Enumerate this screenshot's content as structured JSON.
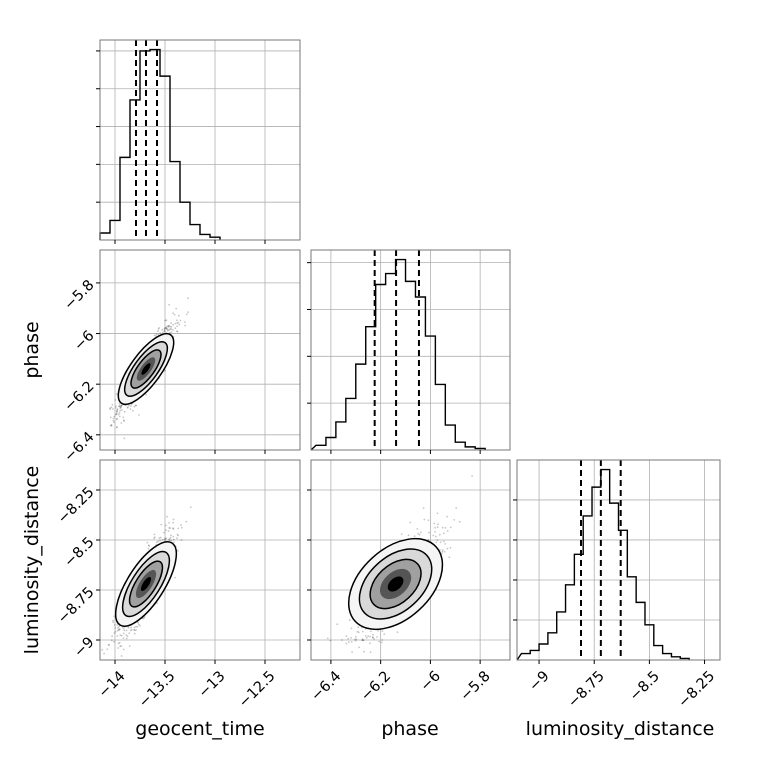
{
  "figure": {
    "background": "#ffffff",
    "grid": true,
    "grid_color": "#b0b0b0"
  },
  "chart_data": [
    {
      "type": "histogram",
      "panel": "geocent_time",
      "xlim": [
        -14.15,
        -12.15
      ],
      "bins": [
        -14.15,
        -14.05,
        -13.95,
        -13.85,
        -13.75,
        -13.65,
        -13.55,
        -13.45,
        -13.35,
        -13.25,
        -13.15,
        -13.05,
        -12.95
      ],
      "counts": [
        0.05,
        0.14,
        0.59,
        1.0,
        1.35,
        1.36,
        1.17,
        0.56,
        0.27,
        0.11,
        0.04,
        0.02,
        0.0
      ],
      "quantiles": [
        -13.79,
        -13.69,
        -13.58
      ],
      "xticks": [
        -14.0,
        -13.5,
        -13.0,
        -12.5
      ]
    },
    {
      "type": "histogram",
      "panel": "phase",
      "xlim": [
        -6.48,
        -5.68
      ],
      "bins": [
        -6.46,
        -6.42,
        -6.38,
        -6.34,
        -6.3,
        -6.26,
        -6.22,
        -6.18,
        -6.14,
        -6.1,
        -6.06,
        -6.02,
        -5.98,
        -5.94,
        -5.9,
        -5.86,
        -5.82,
        -5.78
      ],
      "counts": [
        0.03,
        0.08,
        0.18,
        0.33,
        0.55,
        0.79,
        1.06,
        1.13,
        1.22,
        1.08,
        0.98,
        0.73,
        0.42,
        0.16,
        0.05,
        0.02,
        0.01
      ],
      "quantiles": [
        -6.224,
        -6.138,
        -6.046
      ],
      "xticks": [
        -6.4,
        -6.2,
        -6.0,
        -5.8
      ]
    },
    {
      "type": "histogram",
      "panel": "luminosity_distance",
      "xlim": [
        -9.1,
        -8.18
      ],
      "bins": [
        -9.08,
        -9.04,
        -9.0,
        -8.96,
        -8.92,
        -8.88,
        -8.84,
        -8.8,
        -8.76,
        -8.72,
        -8.68,
        -8.64,
        -8.6,
        -8.56,
        -8.52,
        -8.48,
        -8.44,
        -8.4,
        -8.36,
        -8.32
      ],
      "counts": [
        0.04,
        0.06,
        0.1,
        0.17,
        0.3,
        0.47,
        0.66,
        0.9,
        1.08,
        1.19,
        0.98,
        0.81,
        0.52,
        0.36,
        0.22,
        0.09,
        0.04,
        0.02,
        0.01
      ],
      "quantiles": [
        -8.81,
        -8.72,
        -8.63
      ],
      "xticks": [
        -9.0,
        -8.75,
        -8.5,
        -8.25
      ]
    },
    {
      "type": "scatter-density",
      "panel": "phase vs geocent_time",
      "x_param": "geocent_time",
      "y_param": "phase",
      "xlim": [
        -14.15,
        -12.15
      ],
      "ylim": [
        -6.46,
        -5.67
      ],
      "center": [
        -13.69,
        -6.14
      ],
      "sd": [
        0.14,
        0.085
      ],
      "correlation": 0.9,
      "yticks": [
        -5.8,
        -6.0,
        -6.2,
        -6.4
      ]
    },
    {
      "type": "scatter-density",
      "panel": "luminosity_distance vs geocent_time",
      "x_param": "geocent_time",
      "y_param": "luminosity_distance",
      "xlim": [
        -14.15,
        -12.15
      ],
      "ylim": [
        -9.1,
        -8.1
      ],
      "center": [
        -13.69,
        -8.72
      ],
      "sd": [
        0.14,
        0.13
      ],
      "correlation": 0.85,
      "yticks": [
        -8.25,
        -8.5,
        -8.75,
        -9.0
      ]
    },
    {
      "type": "scatter-density",
      "panel": "luminosity_distance vs phase",
      "x_param": "phase",
      "y_param": "luminosity_distance",
      "xlim": [
        -6.48,
        -5.68
      ],
      "ylim": [
        -9.1,
        -8.1
      ],
      "center": [
        -6.14,
        -8.72
      ],
      "sd": [
        0.085,
        0.13
      ],
      "correlation": 0.75
    }
  ],
  "labels": {
    "x": [
      "geocent_time",
      "phase",
      "luminosity_distance"
    ],
    "y": [
      "phase",
      "luminosity_distance"
    ]
  }
}
